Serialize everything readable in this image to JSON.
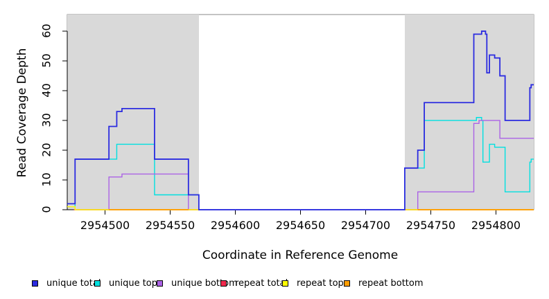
{
  "chart_data": {
    "type": "line",
    "subtype": "step-coverage",
    "title": "",
    "xlabel": "Coordinate in Reference Genome",
    "ylabel": "Read Coverage Depth",
    "xlim": [
      2954471,
      2954829
    ],
    "ylim": [
      0,
      65.6
    ],
    "grid": false,
    "x_ticks": [
      2954500,
      2954550,
      2954600,
      2954650,
      2954700,
      2954750,
      2954800
    ],
    "x_tick_labels": [
      "2954500",
      "2954550",
      "2954600",
      "2954650",
      "2954700",
      "2954750",
      "2954800"
    ],
    "y_ticks": [
      0,
      10,
      20,
      30,
      40,
      50,
      60
    ],
    "y_tick_labels": [
      "0",
      "10",
      "20",
      "30",
      "40",
      "50",
      "60"
    ],
    "shade_color": "#d9d9d9",
    "box_color": "#8a8a8a",
    "axis_color": "#000000",
    "shaded_regions": [
      {
        "from": 2954471,
        "to": 2954572
      },
      {
        "from": 2954730,
        "to": 2954829
      }
    ],
    "legend_position": "bottom",
    "legend": [
      {
        "label": "unique total",
        "color": "#2b2be0"
      },
      {
        "label": "unique top",
        "color": "#00e0e0"
      },
      {
        "label": "unique bottom",
        "color": "#ab62e6"
      },
      {
        "label": "repeat total",
        "color": "#f0284c"
      },
      {
        "label": "repeat top",
        "color": "#ffff00"
      },
      {
        "label": "repeat bottom",
        "color": "#ff9d00"
      }
    ],
    "series": [
      {
        "name": "unique total",
        "color": "#2b2be0",
        "width": 1.8,
        "segments": [
          {
            "end": 2954829,
            "points": [
              [
                2954471,
                2
              ],
              [
                2954477,
                17
              ],
              [
                2954503,
                28
              ],
              [
                2954509,
                33
              ],
              [
                2954513,
                34
              ],
              [
                2954538,
                17
              ],
              [
                2954564,
                5
              ],
              [
                2954572,
                0
              ],
              [
                2954730,
                14
              ],
              [
                2954740,
                20
              ],
              [
                2954745,
                36
              ],
              [
                2954783,
                59
              ],
              [
                2954789,
                60
              ],
              [
                2954792,
                59
              ],
              [
                2954793,
                46
              ],
              [
                2954795,
                52
              ],
              [
                2954799,
                51
              ],
              [
                2954803,
                45
              ],
              [
                2954807,
                30
              ],
              [
                2954826,
                41
              ],
              [
                2954827,
                42
              ]
            ]
          }
        ]
      },
      {
        "name": "unique top",
        "color": "#00e0e0",
        "width": 1.4,
        "segments": [
          {
            "end": 2954829,
            "points": [
              [
                2954471,
                1
              ],
              [
                2954477,
                17
              ],
              [
                2954509,
                22
              ],
              [
                2954538,
                5
              ],
              [
                2954572,
                0
              ],
              [
                2954730,
                14
              ],
              [
                2954745,
                30
              ],
              [
                2954785,
                31
              ],
              [
                2954789,
                30
              ],
              [
                2954790,
                16
              ],
              [
                2954795,
                22
              ],
              [
                2954799,
                21
              ],
              [
                2954807,
                6
              ],
              [
                2954826,
                16
              ],
              [
                2954827,
                17
              ]
            ]
          }
        ]
      },
      {
        "name": "unique bottom",
        "color": "#ab62e6",
        "width": 1.4,
        "segments": [
          {
            "end": 2954829,
            "points": [
              [
                2954471,
                1
              ],
              [
                2954477,
                0
              ],
              [
                2954503,
                11
              ],
              [
                2954513,
                12
              ],
              [
                2954564,
                0
              ],
              [
                2954740,
                6
              ],
              [
                2954783,
                29
              ],
              [
                2954787,
                30
              ],
              [
                2954803,
                24
              ]
            ]
          }
        ]
      },
      {
        "name": "repeat total",
        "color": "#f0284c",
        "width": 1.6,
        "segments": [
          {
            "end": 2954572,
            "points": [
              [
                2954476,
                0
              ]
            ]
          },
          {
            "end": 2954829,
            "points": [
              [
                2954730,
                0
              ]
            ]
          }
        ]
      },
      {
        "name": "repeat top",
        "color": "#ffff00",
        "width": 1.4,
        "segments": [
          {
            "end": 2954572,
            "points": [
              [
                2954471,
                1
              ],
              [
                2954477,
                0
              ]
            ]
          },
          {
            "end": 2954829,
            "points": [
              [
                2954730,
                0
              ]
            ]
          }
        ]
      },
      {
        "name": "repeat bottom",
        "color": "#ff9d00",
        "width": 1.8,
        "segments": [
          {
            "end": 2954564,
            "points": [
              [
                2954503,
                0
              ]
            ]
          },
          {
            "end": 2954829,
            "points": [
              [
                2954740,
                0
              ]
            ]
          }
        ]
      }
    ],
    "draw_order": [
      1,
      2,
      3,
      4,
      5,
      0
    ]
  }
}
